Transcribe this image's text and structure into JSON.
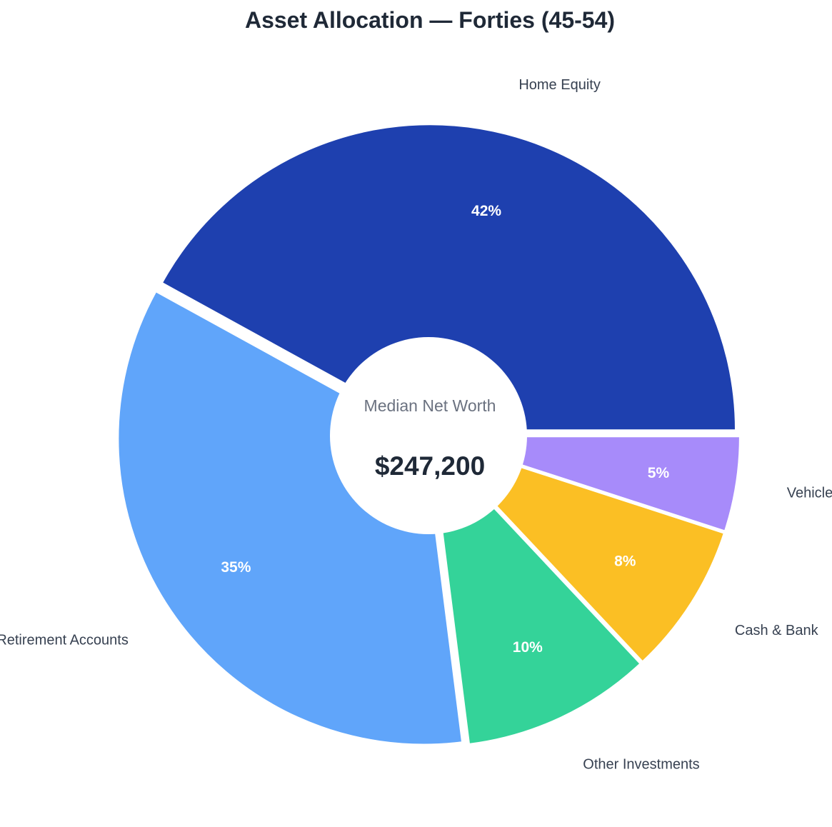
{
  "chart_data": {
    "type": "pie",
    "title": "Asset Allocation — Forties (45-54)",
    "categories": [
      "Home Equity",
      "Retirement Accounts",
      "Other Investments",
      "Cash & Bank",
      "Vehicles"
    ],
    "values": [
      42,
      35,
      10,
      8,
      5
    ],
    "value_labels": [
      "42%",
      "35%",
      "10%",
      "8%",
      "5%"
    ],
    "colors": [
      "#1e40af",
      "#60a5fa",
      "#34d399",
      "#fbbf24",
      "#a78bfa"
    ],
    "donut": true,
    "slices_exploded": true,
    "center": {
      "caption": "Median Net Worth",
      "value": "$247,200"
    }
  }
}
